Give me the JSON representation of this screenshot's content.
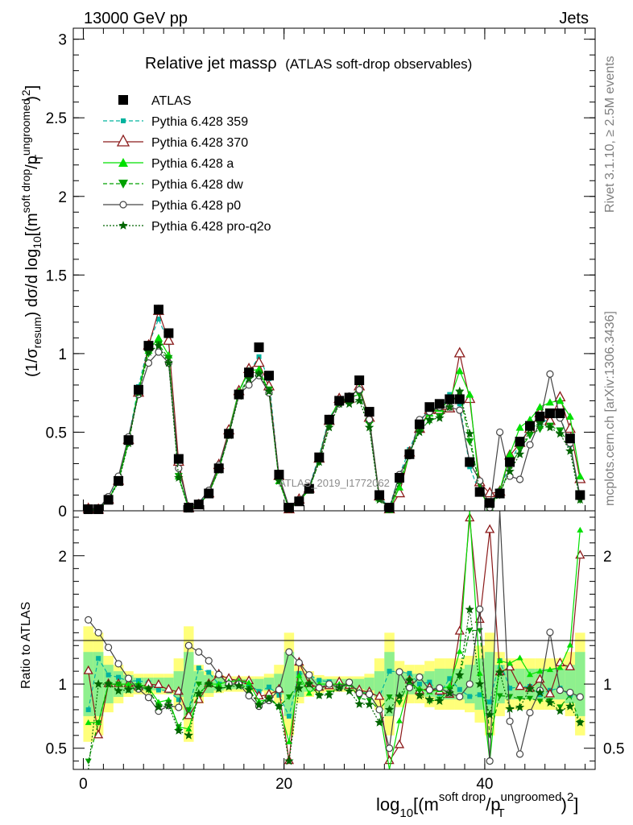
{
  "header": {
    "left": "13000 GeV pp",
    "right": "Jets"
  },
  "side_labels": {
    "rivet": "Rivet 3.1.10, ≥ 2.5M events",
    "mcplots": "mcplots.cern.ch [arXiv:1306.3436]"
  },
  "watermark": "ATLAS_2019_I1772062",
  "main_title": "Relative jet massρ",
  "main_subtitle": "(ATLAS soft-drop observables)",
  "labels": {
    "ylabel_main_pre": "(1/σ",
    "ylabel_main_sub1": "resum",
    "ylabel_main_mid": ") dσ/d log",
    "ylabel_main_sub2": "10",
    "ylabel_main_br": "[(m",
    "ylabel_main_sup1": "soft drop",
    "ylabel_main_slash": "/p",
    "ylabel_main_sup2": "ungroomed",
    "ylabel_main_sub3": "T",
    "ylabel_main_end": ")",
    "ylabel_main_sup3": "2",
    "ylabel_main_close": "]",
    "ylabel_ratio": "Ratio to ATLAS",
    "xlabel_pre": "log",
    "xlabel_sub1": "10",
    "xlabel_br": "[(m",
    "xlabel_sup1": "soft drop",
    "xlabel_slash": "/p",
    "xlabel_sup2": "ungroomed",
    "xlabel_sub2": "T",
    "xlabel_end": ")",
    "xlabel_sup3": "2",
    "xlabel_close": "]"
  },
  "colors": {
    "ATLAS": "#000000",
    "p359": "#00b39e",
    "p370": "#8b1a1a",
    "pa": "#00e000",
    "pdw": "#00a000",
    "pp0": "#444444",
    "pq2o": "#006400",
    "band_yellow": "#ffff7a",
    "band_green": "#8ef08e"
  },
  "chart_data": {
    "type": "line",
    "xlim": [
      -1,
      51
    ],
    "ylim": [
      0,
      3.07
    ],
    "ratio_ylim": [
      0.335,
      2.35
    ],
    "xticks": [
      0,
      20,
      40
    ],
    "yticks": [
      0,
      0.5,
      1,
      1.5,
      2,
      2.5,
      3
    ],
    "ratio_yticks": [
      0.5,
      1,
      2
    ],
    "ratio_yticks_right": [
      0.5,
      1,
      2
    ],
    "x": [
      0.5,
      1.5,
      2.5,
      3.5,
      4.5,
      5.5,
      6.5,
      7.5,
      8.5,
      9.5,
      10.5,
      11.5,
      12.5,
      13.5,
      14.5,
      15.5,
      16.5,
      17.5,
      18.5,
      19.5,
      20.5,
      21.5,
      22.5,
      23.5,
      24.5,
      25.5,
      26.5,
      27.5,
      28.5,
      29.5,
      30.5,
      31.5,
      32.5,
      33.5,
      34.5,
      35.5,
      36.5,
      37.5,
      38.5,
      39.5,
      40.5,
      41.5,
      42.5,
      43.5,
      44.5,
      45.5,
      46.5,
      47.5,
      48.5,
      49.5
    ],
    "series": [
      {
        "name": "ATLAS",
        "key": "ATLAS",
        "marker": "square",
        "dash": "",
        "values": [
          0.01,
          0.01,
          0.07,
          0.19,
          0.45,
          0.77,
          1.05,
          1.28,
          1.13,
          0.33,
          0.02,
          0.04,
          0.11,
          0.27,
          0.49,
          0.74,
          0.88,
          1.04,
          0.86,
          0.23,
          0.02,
          0.06,
          0.14,
          0.34,
          0.58,
          0.7,
          0.72,
          0.83,
          0.63,
          0.1,
          0.02,
          0.21,
          0.36,
          0.55,
          0.66,
          0.68,
          0.71,
          0.71,
          0.31,
          0.12,
          0.05,
          0.11,
          0.31,
          0.44,
          0.54,
          0.6,
          0.62,
          0.62,
          0.46,
          0.1
        ]
      },
      {
        "name": "Pythia 6.428 359",
        "key": "p359",
        "marker": "smallsquare",
        "dash": "5,3",
        "values": [
          0.008,
          0.012,
          0.075,
          0.2,
          0.46,
          0.79,
          1.06,
          1.22,
          1.07,
          0.29,
          0.016,
          0.045,
          0.12,
          0.27,
          0.51,
          0.76,
          0.88,
          0.98,
          0.84,
          0.21,
          0.015,
          0.065,
          0.15,
          0.35,
          0.59,
          0.69,
          0.72,
          0.78,
          0.59,
          0.09,
          0.022,
          0.23,
          0.39,
          0.55,
          0.67,
          0.63,
          0.74,
          0.68,
          0.28,
          0.11,
          0.043,
          0.13,
          0.3,
          0.43,
          0.53,
          0.55,
          0.59,
          0.6,
          0.42,
          0.09
        ]
      },
      {
        "name": "Pythia 6.428 370",
        "key": "p370",
        "marker": "triangle-open",
        "dash": "",
        "values": [
          0.011,
          0.006,
          0.07,
          0.19,
          0.45,
          0.75,
          1.05,
          1.27,
          1.08,
          0.31,
          0.015,
          0.035,
          0.11,
          0.29,
          0.51,
          0.76,
          0.9,
          0.94,
          0.79,
          0.22,
          0.008,
          0.07,
          0.14,
          0.33,
          0.57,
          0.71,
          0.71,
          0.79,
          0.59,
          0.09,
          0.008,
          0.11,
          0.37,
          0.52,
          0.64,
          0.64,
          0.65,
          1.0,
          0.71,
          0.18,
          0.11,
          0.12,
          0.35,
          0.43,
          0.52,
          0.62,
          0.57,
          0.72,
          0.52,
          0.2
        ]
      },
      {
        "name": "Pythia 6.428 a",
        "key": "pa",
        "marker": "triangle-filled",
        "dash": "",
        "values": [
          0.007,
          0.007,
          0.07,
          0.19,
          0.45,
          0.77,
          1.02,
          1.1,
          0.99,
          0.22,
          0.013,
          0.037,
          0.11,
          0.27,
          0.5,
          0.76,
          0.89,
          0.9,
          0.76,
          0.19,
          0.011,
          0.064,
          0.13,
          0.34,
          0.58,
          0.7,
          0.72,
          0.78,
          0.58,
          0.08,
          0.006,
          0.15,
          0.36,
          0.53,
          0.62,
          0.65,
          0.7,
          0.89,
          0.74,
          0.13,
          0.02,
          0.13,
          0.36,
          0.53,
          0.58,
          0.66,
          0.69,
          0.7,
          0.6,
          0.22
        ]
      },
      {
        "name": "Pythia 6.428 dw",
        "key": "pdw",
        "marker": "triangle-down",
        "dash": "5,3",
        "values": [
          0.004,
          0.007,
          0.07,
          0.19,
          0.43,
          0.76,
          1.0,
          1.06,
          0.97,
          0.22,
          0.016,
          0.04,
          0.11,
          0.26,
          0.48,
          0.74,
          0.85,
          0.87,
          0.77,
          0.19,
          0.018,
          0.06,
          0.14,
          0.31,
          0.54,
          0.68,
          0.72,
          0.74,
          0.55,
          0.08,
          0.018,
          0.18,
          0.37,
          0.52,
          0.57,
          0.6,
          0.68,
          0.75,
          0.44,
          0.17,
          0.03,
          0.1,
          0.28,
          0.39,
          0.48,
          0.52,
          0.54,
          0.51,
          0.42,
          0.07
        ]
      },
      {
        "name": "Pythia 6.428 p0",
        "key": "pp0",
        "marker": "circle-open",
        "dash": "",
        "values": [
          0.015,
          0.014,
          0.09,
          0.22,
          0.47,
          0.74,
          0.94,
          1.01,
          0.94,
          0.27,
          0.026,
          0.05,
          0.13,
          0.29,
          0.49,
          0.74,
          0.8,
          0.86,
          0.75,
          0.22,
          0.025,
          0.07,
          0.15,
          0.33,
          0.58,
          0.68,
          0.73,
          0.77,
          0.58,
          0.08,
          0.01,
          0.23,
          0.35,
          0.58,
          0.63,
          0.66,
          0.66,
          0.64,
          0.31,
          0.19,
          0.02,
          0.5,
          0.22,
          0.2,
          0.42,
          0.57,
          0.87,
          0.59,
          0.43,
          0.09
        ]
      },
      {
        "name": "Pythia 6.428 pro-q2o",
        "key": "pq2o",
        "marker": "star",
        "dash": "2,2",
        "values": [
          0.003,
          0.01,
          0.07,
          0.18,
          0.43,
          0.75,
          1.01,
          1.05,
          0.94,
          0.21,
          0.012,
          0.037,
          0.11,
          0.26,
          0.48,
          0.73,
          0.84,
          0.87,
          0.76,
          0.19,
          0.008,
          0.058,
          0.14,
          0.31,
          0.53,
          0.68,
          0.68,
          0.7,
          0.53,
          0.07,
          0.016,
          0.19,
          0.37,
          0.5,
          0.58,
          0.59,
          0.66,
          0.76,
          0.49,
          0.12,
          0.038,
          0.12,
          0.25,
          0.36,
          0.52,
          0.56,
          0.53,
          0.49,
          0.38,
          0.07
        ]
      }
    ],
    "ratio_bands": {
      "green_half_width": [
        0.25,
        0.25,
        0.15,
        0.1,
        0.07,
        0.05,
        0.05,
        0.05,
        0.05,
        0.1,
        0.25,
        0.1,
        0.07,
        0.05,
        0.04,
        0.04,
        0.04,
        0.04,
        0.05,
        0.08,
        0.25,
        0.1,
        0.06,
        0.04,
        0.04,
        0.04,
        0.04,
        0.04,
        0.05,
        0.1,
        0.25,
        0.1,
        0.08,
        0.08,
        0.1,
        0.12,
        0.12,
        0.12,
        0.15,
        0.2,
        0.25,
        0.15,
        0.12,
        0.12,
        0.12,
        0.12,
        0.12,
        0.12,
        0.15,
        0.25
      ],
      "yellow_half_width": [
        0.45,
        0.4,
        0.22,
        0.15,
        0.1,
        0.08,
        0.08,
        0.08,
        0.08,
        0.2,
        0.45,
        0.15,
        0.1,
        0.07,
        0.06,
        0.06,
        0.06,
        0.06,
        0.08,
        0.15,
        0.4,
        0.15,
        0.1,
        0.07,
        0.06,
        0.06,
        0.06,
        0.06,
        0.08,
        0.2,
        0.4,
        0.18,
        0.15,
        0.15,
        0.18,
        0.2,
        0.2,
        0.2,
        0.22,
        0.3,
        0.4,
        0.25,
        0.2,
        0.2,
        0.2,
        0.2,
        0.2,
        0.2,
        0.25,
        0.4
      ]
    }
  }
}
